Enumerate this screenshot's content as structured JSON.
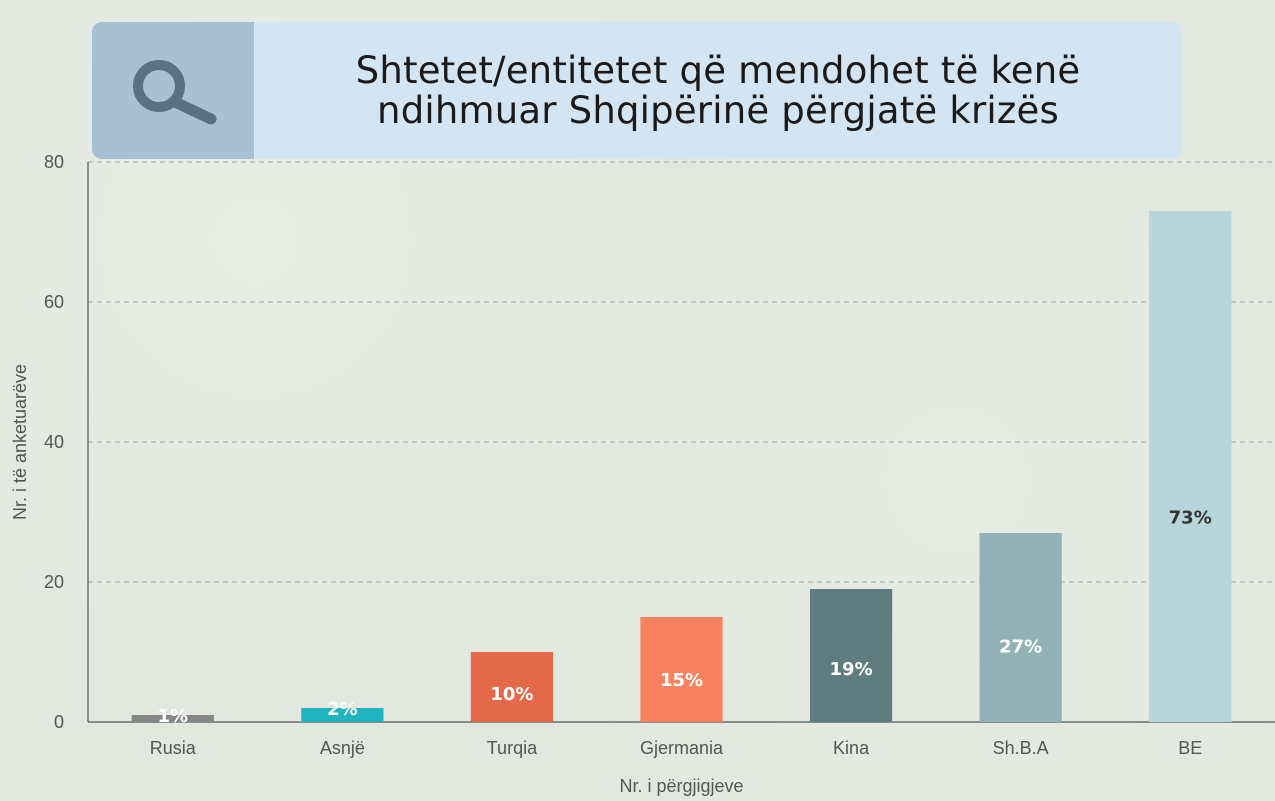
{
  "header": {
    "title_line1": "Shtetet/entitetet që mendohet të kenë",
    "title_line2": "ndihmuar Shqipërinë përgjatë krizës",
    "icon": "search-icon"
  },
  "chart_data": {
    "type": "bar",
    "title": "Shtetet/entitetet që mendohet të kenë ndihmuar Shqipërinë përgjatë krizës",
    "categories": [
      "Rusia",
      "Asnjë",
      "Turqia",
      "Gjermania",
      "Kina",
      "Sh.B.A",
      "BE"
    ],
    "values": [
      1,
      2,
      10,
      15,
      19,
      27,
      73
    ],
    "data_labels": [
      "1%",
      "2%",
      "10%",
      "15%",
      "19%",
      "27%",
      "73%"
    ],
    "colors": [
      "#878787",
      "#1fb4c0",
      "#e4694a",
      "#f8825f",
      "#5f7d81",
      "#92b2b7",
      "#b7d6dc"
    ],
    "label_colors": [
      "#ffffff",
      "#ffffff",
      "#ffffff",
      "#ffffff",
      "#ffffff",
      "#ffffff",
      "#333333"
    ],
    "xlabel": "Nr. i përgjigjeve",
    "ylabel": "Nr. i të anketuarëve",
    "ylim": [
      0,
      80
    ],
    "yticks": [
      0,
      20,
      40,
      60,
      80
    ],
    "grid": true,
    "legend": "none"
  }
}
